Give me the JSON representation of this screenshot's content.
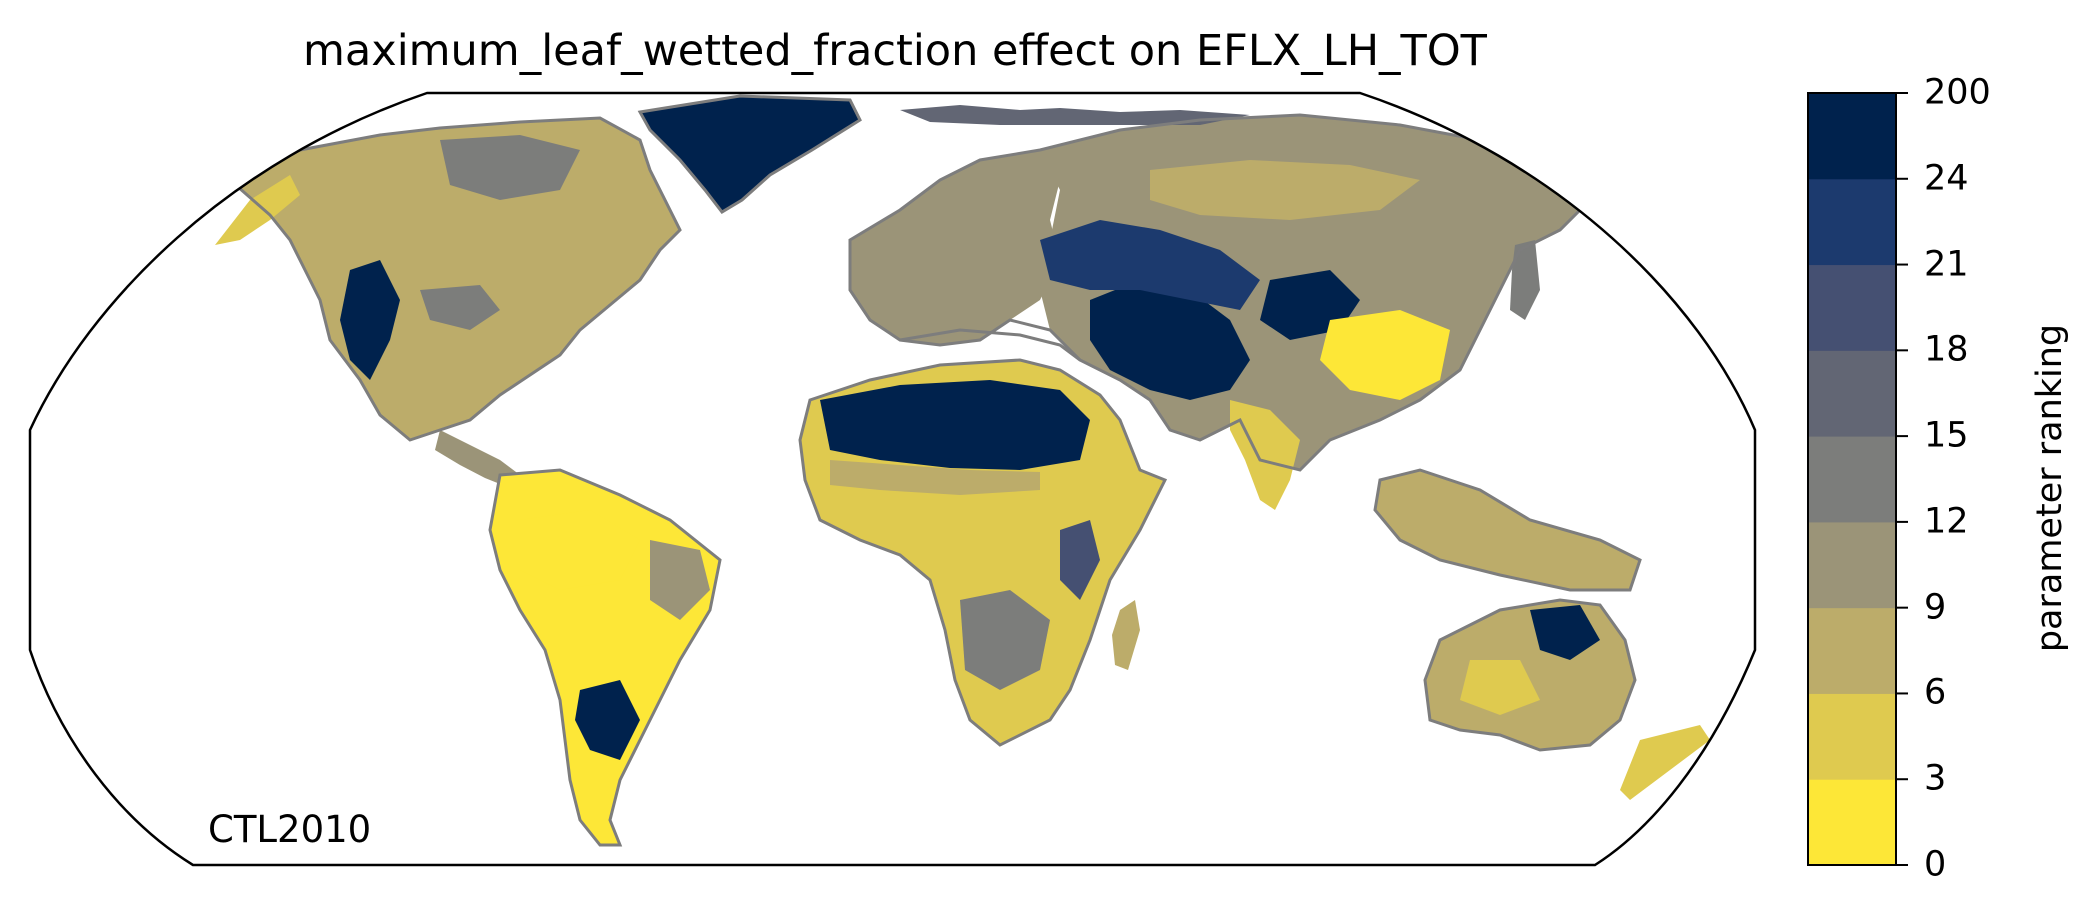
{
  "title": "maximum_leaf_wetted_fraction effect on EFLX_LH_TOT",
  "panel_label": "CTL2010",
  "colorbar": {
    "label": "parameter ranking",
    "ticks": [
      "0",
      "3",
      "6",
      "9",
      "12",
      "15",
      "18",
      "21",
      "24",
      "200"
    ],
    "colors": [
      "#fde737",
      "#dfca4f",
      "#bcac6a",
      "#9b9478",
      "#7c7d7b",
      "#626674",
      "#455072",
      "#1c3a6e",
      "#00224d"
    ]
  },
  "map": {
    "projection": "Robinson",
    "coastline_color": "#7d7d7d",
    "land_color_default": "#dfca4f"
  }
}
